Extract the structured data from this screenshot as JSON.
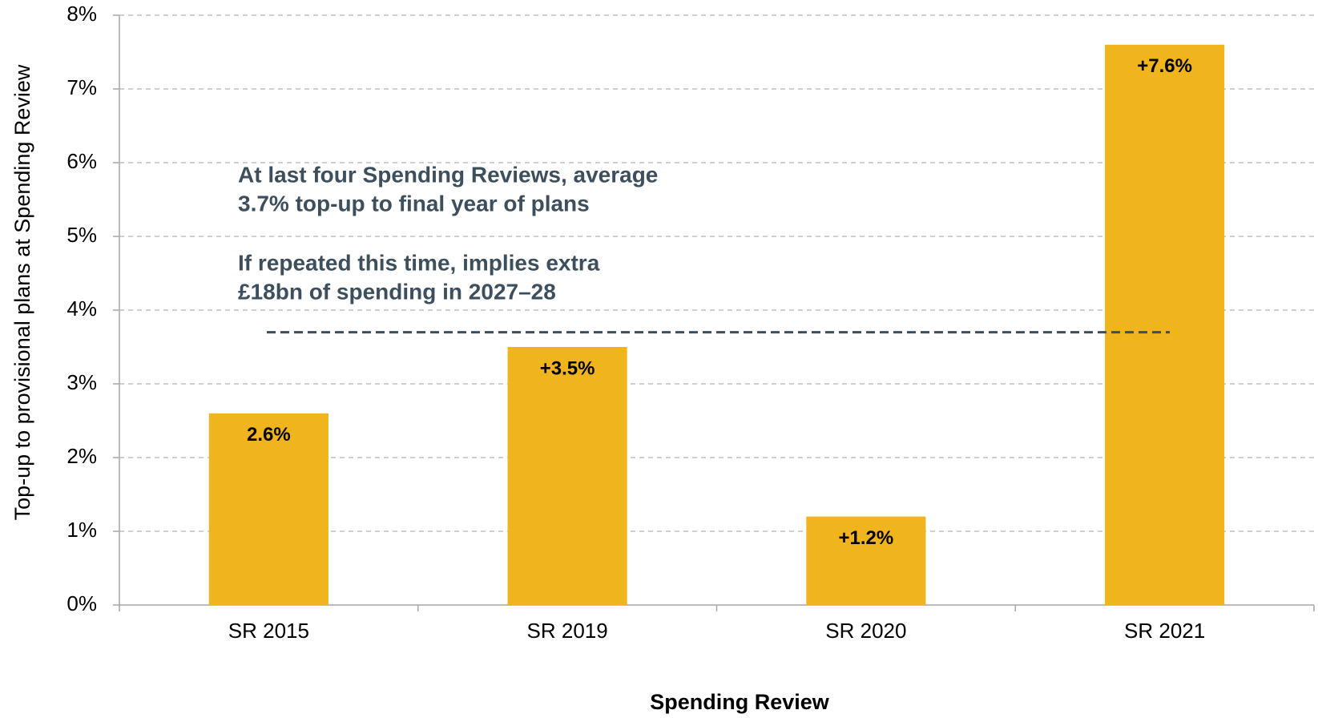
{
  "chart_data": {
    "type": "bar",
    "x_label": "Spending Review",
    "y_label": "Top-up to provisional plans at Spending Review",
    "categories": [
      "SR 2015",
      "SR 2019",
      "SR 2020",
      "SR 2021"
    ],
    "values": [
      2.6,
      3.5,
      1.2,
      7.6
    ],
    "value_labels": [
      "2.6%",
      "+3.5%",
      "+1.2%",
      "+7.6%"
    ],
    "color": "#f0b41c",
    "ylim": [
      0,
      8
    ],
    "yticks": [
      {
        "value": 0,
        "label": "0%"
      },
      {
        "value": 1,
        "label": "1%"
      },
      {
        "value": 2,
        "label": "2%"
      },
      {
        "value": 3,
        "label": "3%"
      },
      {
        "value": 4,
        "label": "4%"
      },
      {
        "value": 5,
        "label": "5%"
      },
      {
        "value": 6,
        "label": "6%"
      },
      {
        "value": 7,
        "label": "7%"
      },
      {
        "value": 8,
        "label": "8%"
      }
    ],
    "grid": true,
    "average_line": {
      "value": 3.7,
      "color": "#3d4f5c"
    },
    "annotations": [
      [
        "At last four Spending Reviews, average",
        "3.7% top-up to final year of plans"
      ],
      [
        "If repeated this time, implies extra",
        "£18bn of spending in 2027–28"
      ]
    ]
  }
}
